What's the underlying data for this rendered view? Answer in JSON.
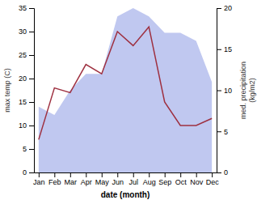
{
  "chart_data": {
    "type": "line",
    "xlabel": "date (month)",
    "ylabel": "max temp (C)",
    "y2label": "med. precipitation\n(kg/m2)",
    "categories": [
      "Jan",
      "Feb",
      "Mar",
      "Apr",
      "May",
      "Jun",
      "Jul",
      "Aug",
      "Sep",
      "Oct",
      "Nov",
      "Dec"
    ],
    "series": [
      {
        "type": "area",
        "axis": "y2",
        "color": "#c0c8f0",
        "values": [
          8,
          7,
          10,
          12,
          12,
          19,
          20,
          19,
          17,
          17,
          16,
          11
        ]
      },
      {
        "type": "line",
        "color": "#9e3040",
        "values": [
          7,
          18,
          17,
          23,
          21,
          30,
          27,
          31,
          15,
          10,
          10,
          11.5
        ]
      }
    ],
    "ylim": [
      0,
      35
    ],
    "yticks": [
      0,
      5,
      10,
      15,
      20,
      25,
      30,
      35
    ],
    "y2lim": [
      0,
      20
    ],
    "y2ticks": [
      0,
      5,
      10,
      15,
      20
    ]
  }
}
